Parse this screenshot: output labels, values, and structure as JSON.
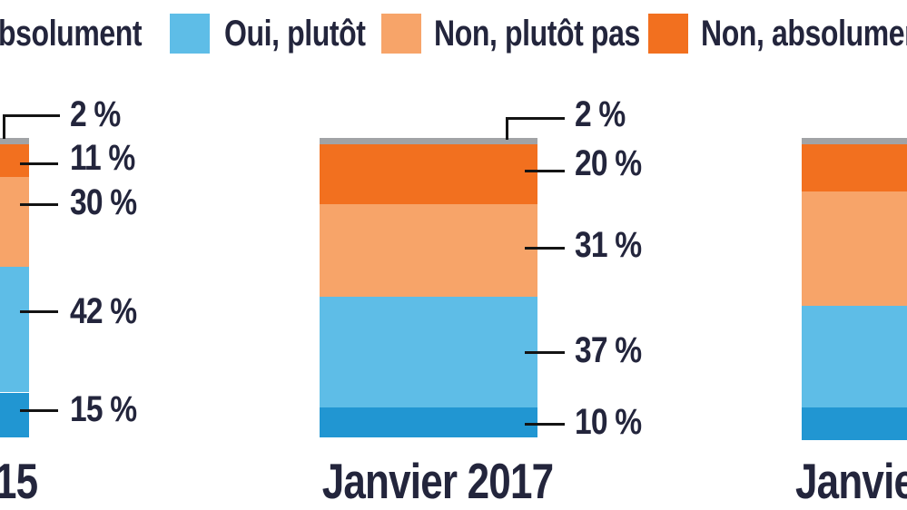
{
  "colors": {
    "oui_absolument": "#2196d2",
    "oui_plutot": "#5ebde7",
    "non_plutot_pas": "#f7a469",
    "non_absolument": "#f2701f",
    "gris": "#a1a3a6",
    "text": "#23253c",
    "leader_line": "#141414",
    "background": "#ffffff"
  },
  "legend": {
    "items": [
      {
        "label": "bsolument",
        "swatch": null,
        "truncated": true
      },
      {
        "label": "Oui, plutôt",
        "swatch": "oui_plutot"
      },
      {
        "label": "Non, plutôt pas",
        "swatch": "non_plutot_pas"
      },
      {
        "label": "Non, absolument",
        "swatch": "non_absolument"
      }
    ]
  },
  "chart_data": {
    "type": "bar",
    "stacked": true,
    "orientation": "vertical",
    "unit": "%",
    "ylim": [
      0,
      100
    ],
    "grid": false,
    "legend_position": "top",
    "categories": [
      "15",
      "Janvier 2017",
      "Janvie"
    ],
    "series": [
      {
        "name": "gris",
        "in_legend": false,
        "color": "gris",
        "values": [
          2,
          2,
          2
        ]
      },
      {
        "name": "Non, absolument",
        "color": "non_absolument",
        "values": [
          11,
          20,
          16
        ]
      },
      {
        "name": "Non, plutôt pas",
        "color": "non_plutot_pas",
        "values": [
          30,
          31,
          38
        ]
      },
      {
        "name": "Oui, plutôt",
        "color": "oui_plutot",
        "values": [
          42,
          37,
          34
        ]
      },
      {
        "name": "Oui, absolument",
        "color": "oui_absolument",
        "values": [
          15,
          10,
          11
        ]
      }
    ],
    "annotations": [
      [
        "2 %",
        "11 %",
        "30 %",
        "42 %",
        "15 %"
      ],
      [
        "2 %",
        "20 %",
        "31 %",
        "37 %",
        "10 %"
      ],
      []
    ],
    "note": "right bar values estimated from pixel heights; its labels are outside the crop"
  }
}
